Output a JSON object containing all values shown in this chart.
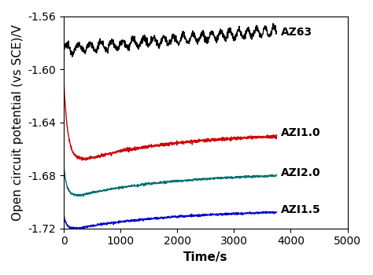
{
  "title": "",
  "xlabel": "Time/s",
  "ylabel": "Open circuit potential (vs SCE)/V",
  "xlim": [
    0,
    5000
  ],
  "ylim": [
    -1.72,
    -1.56
  ],
  "xticks": [
    0,
    1000,
    2000,
    3000,
    4000,
    5000
  ],
  "yticks": [
    -1.72,
    -1.68,
    -1.64,
    -1.6,
    -1.56
  ],
  "series": [
    {
      "label": "AZ63",
      "color": "#000000",
      "start_val": -1.585,
      "end_val": -1.571,
      "noise_amp": 0.0032,
      "noise_freq": 18,
      "t_end": 3750
    },
    {
      "label": "AZI1.0",
      "color": "#cc0000",
      "start_val": -1.61,
      "dip_val": -1.668,
      "end_val": -1.648,
      "noise": 0.0006,
      "dip_time": 380,
      "t_end": 3750
    },
    {
      "label": "AZI2.0",
      "color": "#007070",
      "start_val": -1.674,
      "dip_val": -1.695,
      "end_val": -1.678,
      "noise": 0.0004,
      "dip_time": 280,
      "t_end": 3750
    },
    {
      "label": "AZI1.5",
      "color": "#0000cc",
      "start_val": -1.71,
      "dip_val": -1.72,
      "end_val": -1.706,
      "noise": 0.0004,
      "dip_time": 230,
      "t_end": 3750
    }
  ],
  "label_positions": {
    "AZ63": [
      3820,
      -1.572
    ],
    "AZI1.0": [
      3820,
      -1.648
    ],
    "AZI2.0": [
      3820,
      -1.678
    ],
    "AZI1.5": [
      3820,
      -1.706
    ]
  },
  "fontsize_axis_label": 11,
  "fontsize_tick": 10,
  "fontsize_annotation": 10,
  "linewidth": 1.0,
  "n_points": 1000
}
